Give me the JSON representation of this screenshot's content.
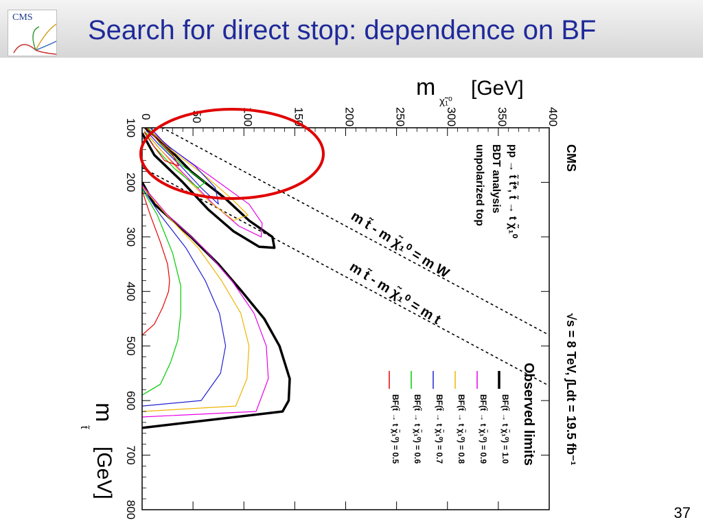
{
  "slide": {
    "title": "Search for direct stop: dependence on BF",
    "page_number": "37",
    "logo_text": "CMS"
  },
  "chart_data": {
    "type": "line",
    "orientation": "rotated-90-clockwise",
    "x_axis": {
      "label": "m",
      "label_sub": "t̃",
      "unit": "[GeV]",
      "range": [
        100,
        800
      ],
      "ticks": [
        100,
        200,
        300,
        400,
        500,
        600,
        700,
        800
      ]
    },
    "y_axis": {
      "label": "m",
      "label_sub": "χ̃₁⁰",
      "unit": "[GeV]",
      "range": [
        0,
        400
      ],
      "ticks": [
        0,
        50,
        100,
        150,
        200,
        250,
        300,
        350,
        400
      ]
    },
    "labels": {
      "experiment": "CMS",
      "process": "pp → t̃ t̃*, t̃ → t χ̃₁⁰",
      "analysis": "BDT analysis",
      "polarization": "unpolarized top",
      "energy_lumi": "√s = 8 TeV, ∫Ldt = 19.5 fb⁻¹",
      "legend_title": "Observed limits",
      "diag_w": "m t̃ - m χ̃₁⁰ = m W",
      "diag_t": "m t̃ - m χ̃₁⁰ = m t"
    },
    "kinematic_lines": [
      {
        "name": "m t̃ - m χ̃₁⁰ = m W",
        "offset": 80
      },
      {
        "name": "m t̃ - m χ̃₁⁰ = m t",
        "offset": 173
      }
    ],
    "series": [
      {
        "name": "BF(t̃ → t χ̃₁⁰) = 1.0",
        "color": "#000000",
        "main": [
          [
            200,
            0
          ],
          [
            240,
            12
          ],
          [
            300,
            48
          ],
          [
            350,
            75
          ],
          [
            400,
            98
          ],
          [
            450,
            120
          ],
          [
            500,
            135
          ],
          [
            560,
            145
          ],
          [
            600,
            144
          ],
          [
            620,
            138
          ],
          [
            650,
            0
          ]
        ],
        "island": [
          [
            100,
            3
          ],
          [
            130,
            22
          ],
          [
            180,
            48
          ],
          [
            230,
            82
          ],
          [
            270,
            105
          ],
          [
            300,
            128
          ],
          [
            320,
            130
          ],
          [
            318,
            115
          ],
          [
            290,
            90
          ],
          [
            250,
            65
          ],
          [
            200,
            40
          ],
          [
            150,
            12
          ],
          [
            110,
            0
          ]
        ]
      },
      {
        "name": "BF(t̃ → t χ̃₁⁰) = 0.9",
        "color": "#e600e6",
        "main": [
          [
            205,
            0
          ],
          [
            260,
            25
          ],
          [
            320,
            60
          ],
          [
            380,
            88
          ],
          [
            440,
            110
          ],
          [
            500,
            122
          ],
          [
            560,
            124
          ],
          [
            620,
            112
          ],
          [
            630,
            0
          ]
        ],
        "island": [
          [
            100,
            5
          ],
          [
            140,
            30
          ],
          [
            190,
            68
          ],
          [
            240,
            105
          ],
          [
            275,
            118
          ],
          [
            300,
            117
          ],
          [
            280,
            95
          ],
          [
            240,
            70
          ],
          [
            190,
            44
          ],
          [
            140,
            18
          ],
          [
            105,
            2
          ]
        ]
      },
      {
        "name": "BF(t̃ → t χ̃₁⁰) = 0.8",
        "color": "#f0b400",
        "main": [
          [
            208,
            0
          ],
          [
            260,
            24
          ],
          [
            320,
            55
          ],
          [
            380,
            78
          ],
          [
            440,
            97
          ],
          [
            500,
            105
          ],
          [
            560,
            103
          ],
          [
            610,
            92
          ],
          [
            620,
            0
          ]
        ],
        "island": [
          [
            100,
            5
          ],
          [
            140,
            28
          ],
          [
            185,
            60
          ],
          [
            230,
            88
          ],
          [
            260,
            104
          ],
          [
            270,
            90
          ],
          [
            235,
            66
          ],
          [
            190,
            42
          ],
          [
            140,
            18
          ],
          [
            105,
            2
          ]
        ]
      },
      {
        "name": "BF(t̃ → t χ̃₁⁰) = 0.7",
        "color": "#2020d0",
        "main": [
          [
            210,
            0
          ],
          [
            260,
            18
          ],
          [
            320,
            43
          ],
          [
            380,
            62
          ],
          [
            440,
            76
          ],
          [
            500,
            82
          ],
          [
            550,
            77
          ],
          [
            600,
            58
          ],
          [
            610,
            0
          ]
        ],
        "island": [
          [
            100,
            8
          ],
          [
            130,
            23
          ],
          [
            170,
            52
          ],
          [
            210,
            72
          ],
          [
            240,
            75
          ],
          [
            210,
            58
          ],
          [
            170,
            38
          ],
          [
            130,
            16
          ],
          [
            105,
            4
          ]
        ]
      },
      {
        "name": "BF(t̃ → t χ̃₁⁰) = 0.6",
        "color": "#00cc00",
        "main": [
          [
            212,
            0
          ],
          [
            260,
            15
          ],
          [
            330,
            30
          ],
          [
            390,
            38
          ],
          [
            440,
            38
          ],
          [
            490,
            35
          ],
          [
            530,
            28
          ],
          [
            570,
            18
          ],
          [
            590,
            0
          ]
        ],
        "island": [
          [
            100,
            6
          ],
          [
            130,
            18
          ],
          [
            170,
            40
          ],
          [
            200,
            62
          ],
          [
            210,
            55
          ],
          [
            175,
            32
          ],
          [
            135,
            12
          ],
          [
            108,
            3
          ]
        ]
      },
      {
        "name": "BF(t̃ → t χ̃₁⁰) = 0.5",
        "color": "#e60000",
        "main": [
          [
            215,
            0
          ],
          [
            260,
            8
          ],
          [
            310,
            18
          ],
          [
            350,
            25
          ],
          [
            380,
            27
          ],
          [
            400,
            26
          ],
          [
            430,
            20
          ],
          [
            460,
            12
          ],
          [
            480,
            0
          ]
        ],
        "island": [
          [
            100,
            4
          ],
          [
            120,
            14
          ],
          [
            150,
            30
          ],
          [
            170,
            36
          ],
          [
            160,
            22
          ],
          [
            130,
            10
          ],
          [
            108,
            2
          ]
        ]
      }
    ]
  }
}
